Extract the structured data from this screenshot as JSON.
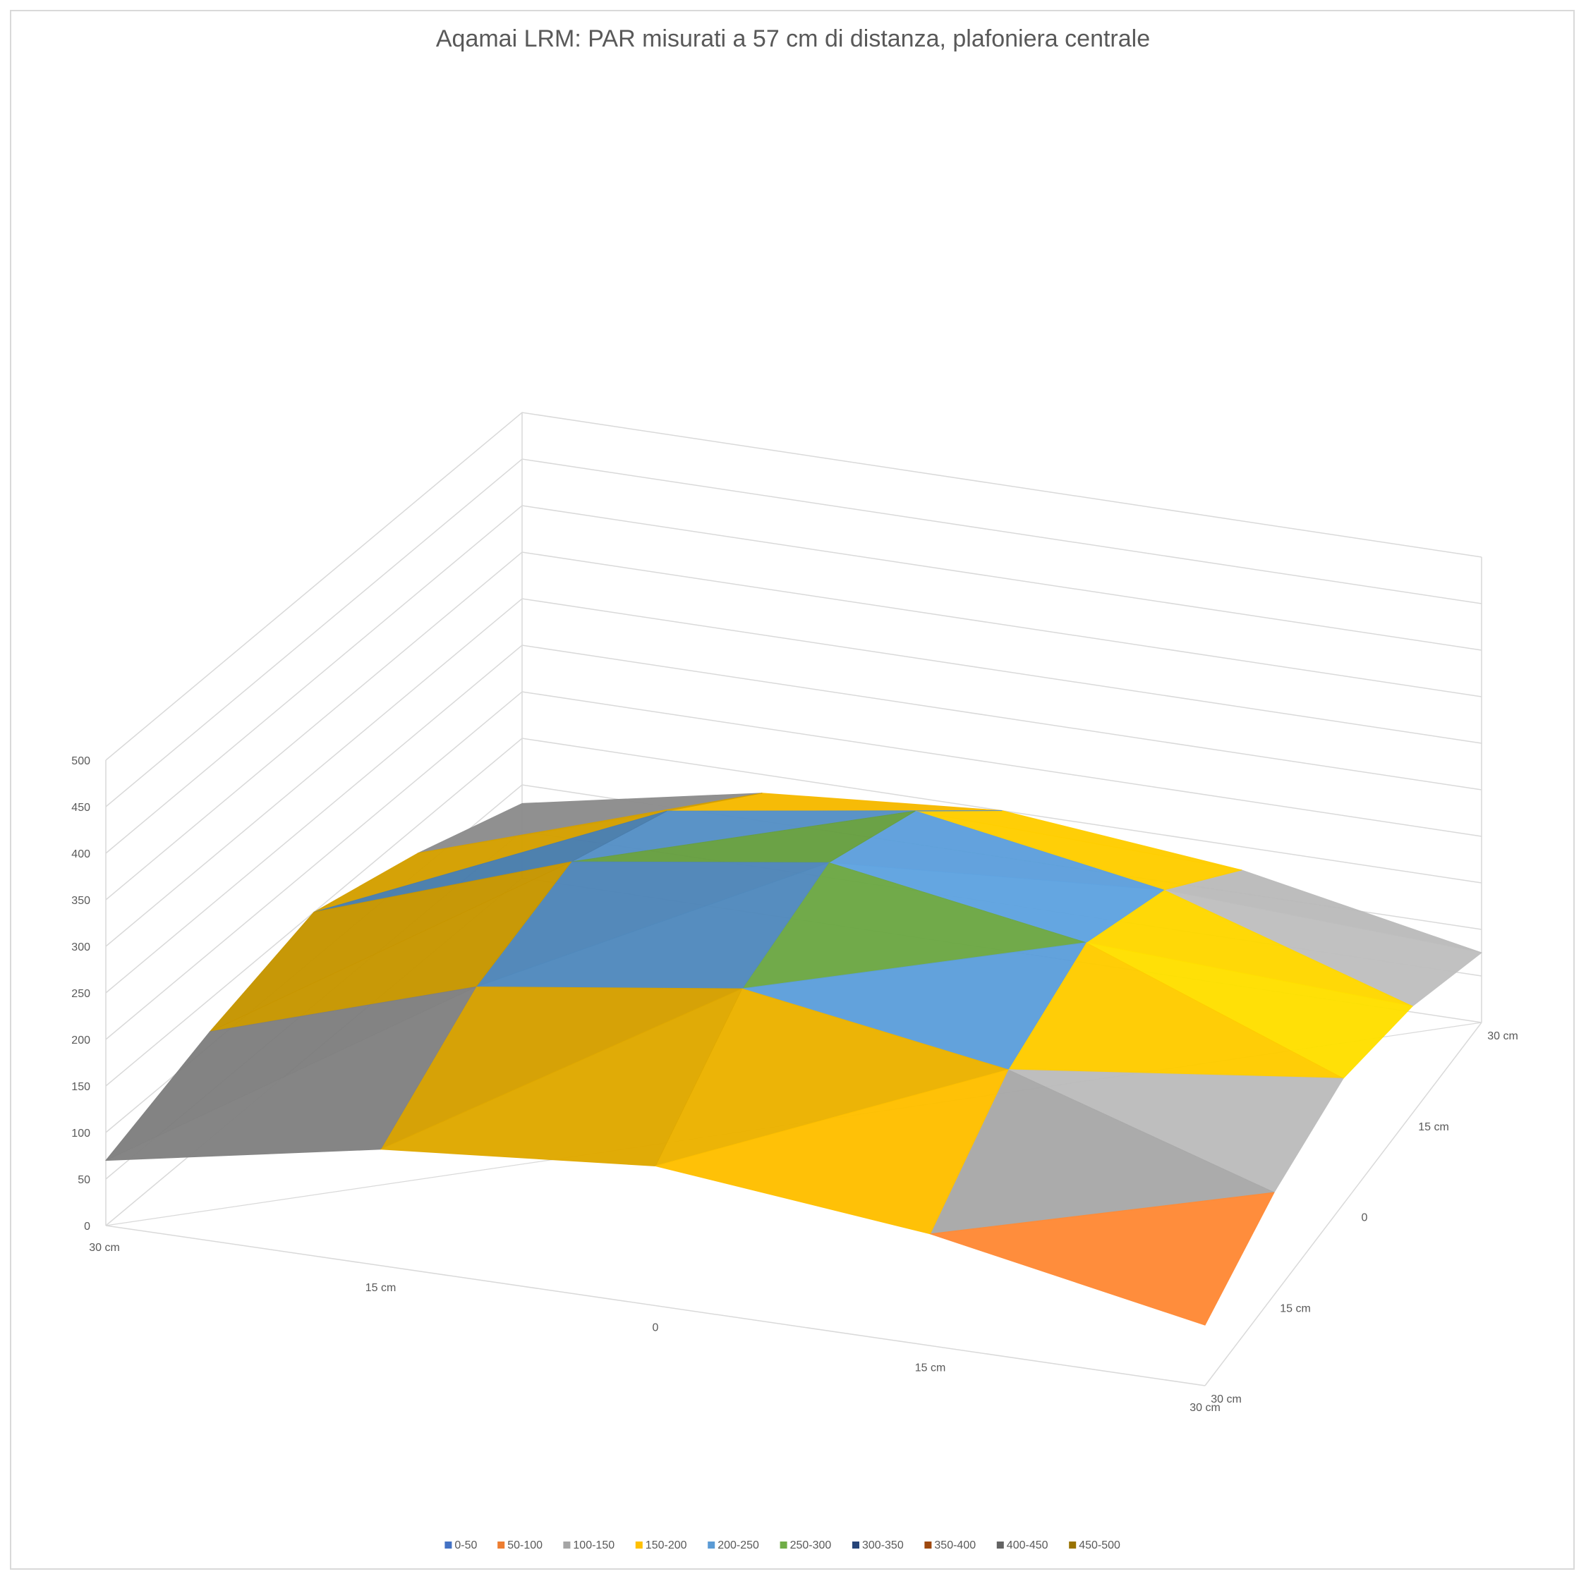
{
  "chart_data": {
    "type": "surface",
    "title": "Aqamai LRM: PAR misurati a 57 cm di distanza, plafoniera centrale",
    "x_ticks": [
      "30 cm",
      "15 cm",
      "0",
      "15 cm",
      "30 cm"
    ],
    "y_ticks": [
      "30 cm",
      "15 cm",
      "0",
      "15 cm",
      "30 cm"
    ],
    "z_ticks": [
      "0",
      "50",
      "100",
      "150",
      "200",
      "250",
      "300",
      "350",
      "400",
      "450",
      "500"
    ],
    "zlim": [
      0,
      500
    ],
    "grid": true,
    "legend_position": "bottom",
    "legend": [
      {
        "label": "0-50",
        "color": "#4472c4"
      },
      {
        "label": "50-100",
        "color": "#ed7d31"
      },
      {
        "label": "100-150",
        "color": "#a5a5a5"
      },
      {
        "label": "150-200",
        "color": "#ffc000"
      },
      {
        "label": "200-250",
        "color": "#5b9bd5"
      },
      {
        "label": "250-300",
        "color": "#70ad47"
      },
      {
        "label": "300-350",
        "color": "#264478"
      },
      {
        "label": "350-400",
        "color": "#9e480e"
      },
      {
        "label": "400-450",
        "color": "#636363"
      },
      {
        "label": "450-500",
        "color": "#997300"
      }
    ],
    "z_values": [
      [
        70,
        115,
        150,
        120,
        80
      ],
      [
        125,
        205,
        245,
        205,
        130
      ],
      [
        150,
        245,
        285,
        245,
        150
      ],
      [
        120,
        200,
        240,
        200,
        125
      ],
      [
        65,
        110,
        135,
        115,
        75
      ]
    ]
  }
}
